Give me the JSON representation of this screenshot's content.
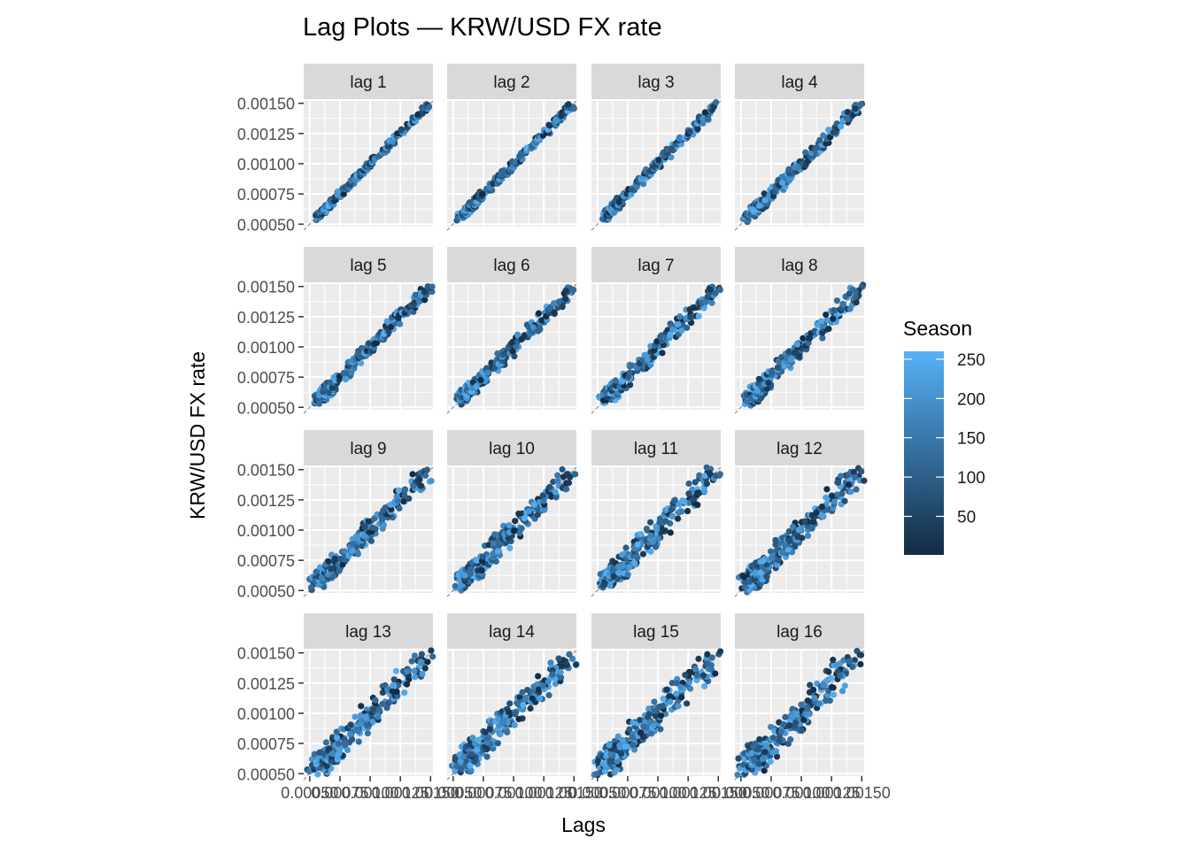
{
  "chart_data": {
    "type": "scatter",
    "title": "Lag Plots — KRW/USD FX rate",
    "xlabel": "Lags",
    "ylabel": "KRW/USD FX rate",
    "facets": [
      "lag 1",
      "lag 2",
      "lag 3",
      "lag 4",
      "lag 5",
      "lag 6",
      "lag 7",
      "lag 8",
      "lag 9",
      "lag 10",
      "lag 11",
      "lag 12",
      "lag 13",
      "lag 14",
      "lag 15",
      "lag 16"
    ],
    "xlim": [
      0.00045,
      0.00152
    ],
    "ylim": [
      0.00048,
      0.00152
    ],
    "y_ticks": [
      0.0005,
      0.00075,
      0.001,
      0.00125,
      0.0015
    ],
    "y_tick_labels": [
      "0.00050",
      "0.00075",
      "0.00100",
      "0.00125",
      "0.00150"
    ],
    "x_ticks": [
      0.0005,
      0.00075,
      0.001,
      0.00125,
      0.0015
    ],
    "x_tick_labels": [
      "0.00050",
      "0.00075",
      "0.00100",
      "0.00125",
      "0.00150"
    ],
    "reference_line": "y = x (dashed grey)",
    "series_sample": {
      "description": "approximate points (x = lagged value, y = value, season)",
      "points": [
        [
          0.00055,
          0.00055,
          30
        ],
        [
          0.00058,
          0.00061,
          20
        ],
        [
          0.00062,
          0.00058,
          60
        ],
        [
          0.0006,
          0.00066,
          90
        ],
        [
          0.00066,
          0.00063,
          140
        ],
        [
          0.0007,
          0.00072,
          200
        ],
        [
          0.00075,
          0.00079,
          230
        ],
        [
          0.0008,
          0.00078,
          120
        ],
        [
          0.00085,
          0.00088,
          60
        ],
        [
          0.0009,
          0.00093,
          40
        ],
        [
          0.00095,
          0.00094,
          200
        ],
        [
          0.001,
          0.00102,
          150
        ],
        [
          0.00105,
          0.00104,
          230
        ],
        [
          0.0011,
          0.00112,
          180
        ],
        [
          0.00115,
          0.00117,
          120
        ],
        [
          0.0012,
          0.00121,
          240
        ],
        [
          0.00125,
          0.00126,
          200
        ],
        [
          0.0013,
          0.00131,
          100
        ],
        [
          0.00135,
          0.00136,
          220
        ],
        [
          0.0014,
          0.00141,
          250
        ],
        [
          0.00145,
          0.00146,
          180
        ],
        [
          0.0015,
          0.0015,
          230
        ]
      ]
    },
    "color_scale": {
      "title": "Season",
      "min": 1,
      "max": 260,
      "low_color": "#132B43",
      "high_color": "#56B1F7",
      "breaks": [
        250,
        200,
        150,
        100,
        50
      ],
      "break_labels": [
        "250",
        "200",
        "150",
        "100",
        "50"
      ]
    }
  },
  "colors": {
    "panel_bg": "#EBEBEB",
    "grid": "#FFFFFF",
    "strip_bg": "#D9D9D9",
    "axis_text": "#4D4D4D",
    "tick": "#333333"
  }
}
